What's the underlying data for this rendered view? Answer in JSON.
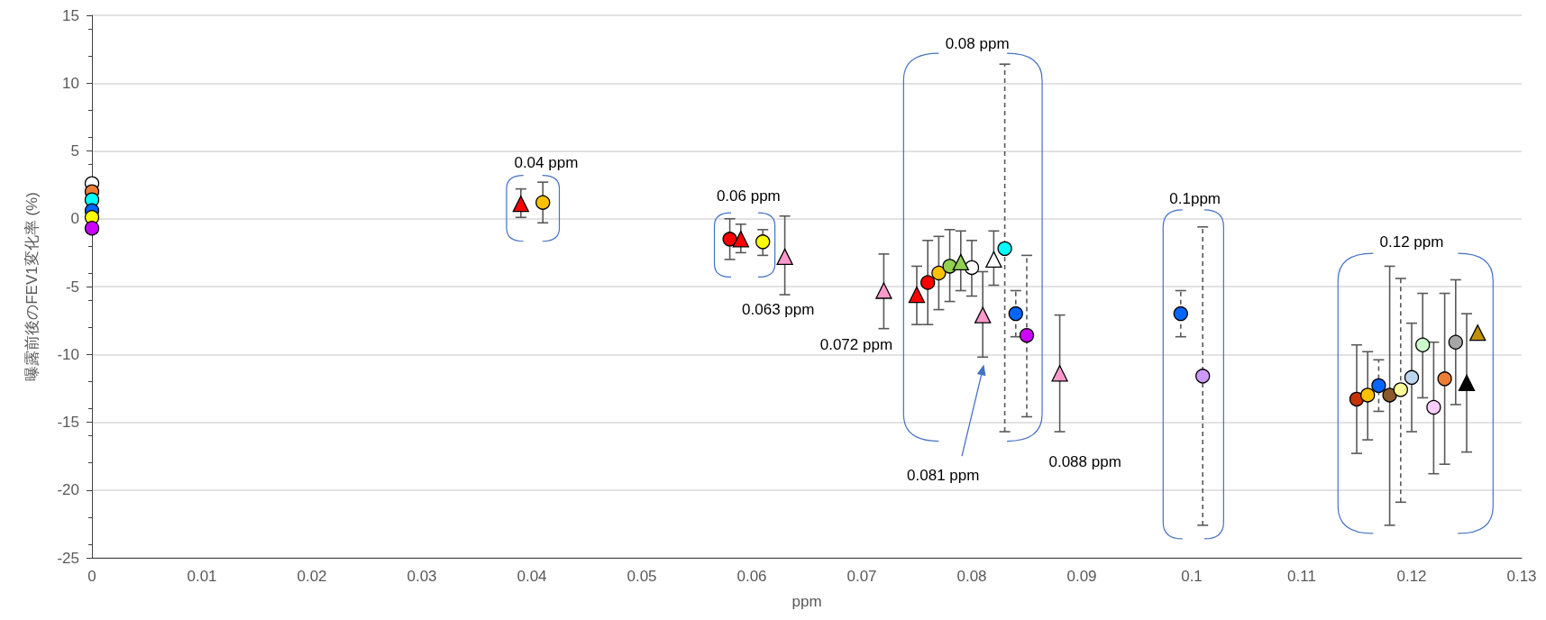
{
  "chart_data": {
    "type": "scatter",
    "xlabel": "ppm",
    "ylabel": "曝露前後のFEV1変化率 (%)",
    "xlim": [
      0,
      0.13
    ],
    "xticks": [
      0,
      0.01,
      0.02,
      0.03,
      0.04,
      0.05,
      0.06,
      0.07,
      0.08,
      0.09,
      0.1,
      0.11,
      0.12,
      0.13
    ],
    "ylim": [
      -25,
      15
    ],
    "yticks": [
      -25,
      -20,
      -15,
      -10,
      -5,
      0,
      5,
      10,
      15
    ],
    "grid": "y",
    "series": [
      {
        "marker": "circle",
        "line_style": "solid",
        "x": [
          0.041,
          0.058,
          0.061,
          0.076,
          0.077,
          0.078,
          0.08,
          0.115,
          0.116,
          0.118,
          0.12,
          0.121,
          0.122,
          0.123,
          0.124
        ],
        "values": [
          1.2,
          -1.5,
          -1.7,
          -4.7,
          -4.0,
          -3.5,
          -3.6,
          -13.3,
          -13.0,
          -13.0,
          -11.7,
          -9.3,
          -13.9,
          -11.8,
          -9.1
        ],
        "colors": [
          "#ffc000",
          "#ff0000",
          "#ffff00",
          "#ff0000",
          "#ffc000",
          "#92d050",
          "#ffffff",
          "#c83200",
          "#ffc000",
          "#8b5a2b",
          "#bdd7ee",
          "#ccffcc",
          "#ffccff",
          "#ed7d31",
          "#a6a6a6"
        ],
        "errors": [
          [
            -0.3,
            2.7
          ],
          [
            -3.0,
            0.0
          ],
          [
            -2.7,
            -0.8
          ],
          [
            -7.8,
            -1.6
          ],
          [
            -6.7,
            -1.3
          ],
          [
            -6.1,
            -0.8
          ],
          [
            -5.7,
            -1.6
          ],
          [
            -17.3,
            -9.3
          ],
          [
            -16.3,
            -9.8
          ],
          [
            -22.6,
            -3.5
          ],
          [
            -15.7,
            -7.7
          ],
          [
            -13.2,
            -5.5
          ],
          [
            -18.8,
            -9.1
          ],
          [
            -18.1,
            -5.5
          ],
          [
            -13.7,
            -4.5
          ]
        ]
      },
      {
        "marker": "triangle",
        "line_style": "solid",
        "x": [
          0.039,
          0.059,
          0.063,
          0.072,
          0.075,
          0.079,
          0.081,
          0.082,
          0.088,
          0.125,
          0.126
        ],
        "values": [
          1.1,
          -1.5,
          -2.8,
          -5.3,
          -5.6,
          -3.2,
          -7.1,
          -3.0,
          -11.4,
          -12.1,
          -8.4
        ],
        "colors": [
          "#ff0000",
          "#ff0000",
          "#ff99cc",
          "#ff99cc",
          "#ff0000",
          "#92d050",
          "#ff99cc",
          "#ffffff",
          "#ff99cc",
          "#000000",
          "#bf9000"
        ],
        "errors": [
          [
            0.1,
            2.2
          ],
          [
            -2.5,
            -0.4
          ],
          [
            -5.6,
            0.2
          ],
          [
            -8.1,
            -2.6
          ],
          [
            -7.8,
            -3.5
          ],
          [
            -5.3,
            -0.9
          ],
          [
            -10.2,
            -3.9
          ],
          [
            -4.9,
            -0.9
          ],
          [
            -15.7,
            -7.1
          ],
          [
            -17.2,
            -7.0
          ],
          null
        ]
      },
      {
        "marker": "circle",
        "line_style": "dashed",
        "x": [
          0.083,
          0.084,
          0.085,
          0.099,
          0.101,
          0.117,
          0.119
        ],
        "values": [
          -2.2,
          -7.0,
          -8.6,
          -7.0,
          -11.6,
          -12.3,
          -12.6
        ],
        "colors": [
          "#00ffff",
          "#0066ff",
          "#cc00ff",
          "#0066ff",
          "#cc99ff",
          "#0066ff",
          "#ffff99"
        ],
        "errors": [
          [
            -15.7,
            11.4
          ],
          [
            -8.7,
            -5.3
          ],
          [
            -14.6,
            -2.7
          ],
          [
            -8.7,
            -5.3
          ],
          [
            -22.6,
            -0.6
          ],
          [
            -14.2,
            -10.4
          ],
          [
            -20.9,
            -4.4
          ]
        ]
      },
      {
        "marker": "circle",
        "x": [
          0,
          0,
          0,
          0,
          0,
          0
        ],
        "values": [
          2.6,
          2.0,
          1.4,
          0.6,
          0.1,
          -0.7
        ],
        "colors": [
          "#ffffff",
          "#ed7d31",
          "#00ffff",
          "#0066ff",
          "#ffff00",
          "#cc00ff"
        ]
      }
    ],
    "annotations": [
      "0.04 ppm",
      "0.06 ppm",
      "0.063 ppm",
      "0.072 ppm",
      "0.08 ppm",
      "0.081 ppm",
      "0.088 ppm",
      "0.1ppm",
      "0.12 ppm"
    ]
  }
}
